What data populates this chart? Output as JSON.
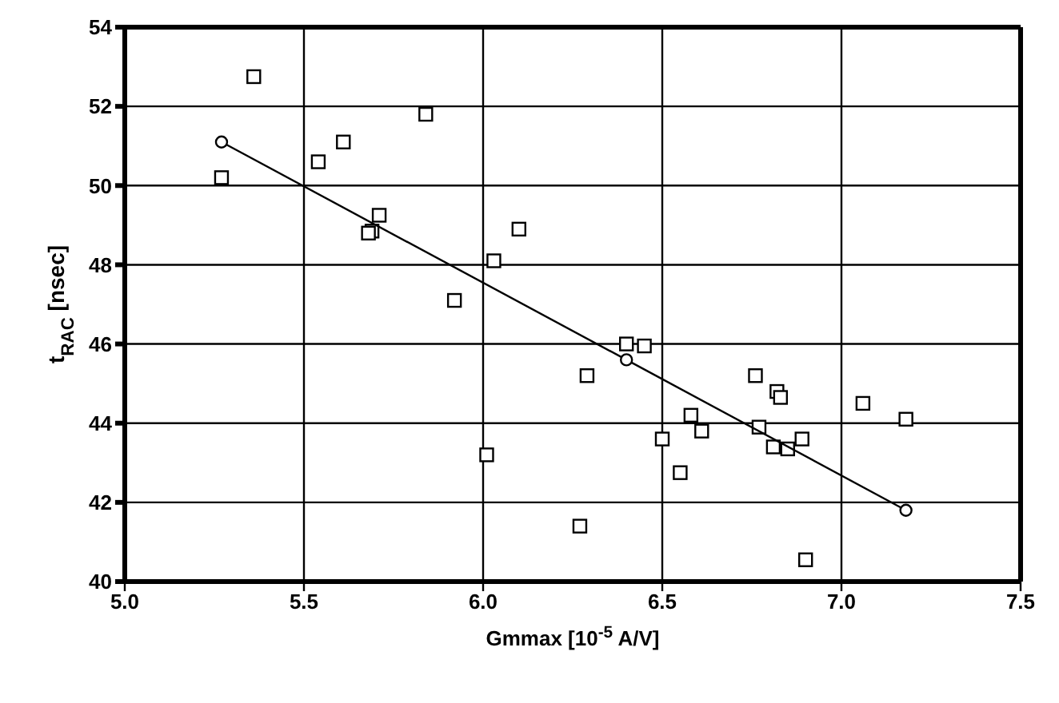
{
  "chart_data": {
    "type": "scatter",
    "xlabel": "Gmmax [10$^{-5}$ A/V]",
    "ylabel": "t$_{RAC}$ [nsec]",
    "xlim": [
      5.0,
      7.5
    ],
    "xticks": [
      {
        "value": 5,
        "label": "5.0"
      },
      5.5,
      {
        "value": 6,
        "label": "6.0"
      },
      6.5,
      {
        "value": 7,
        "label": "7.0"
      },
      7.5
    ],
    "ylim": [
      40,
      54
    ],
    "yticks": [
      40,
      42,
      44,
      46,
      48,
      50,
      52,
      54
    ],
    "grid": true,
    "legend": false,
    "series": [
      {
        "marker": "square",
        "color": "#000000",
        "x": [
          5.36,
          5.27,
          5.54,
          5.61,
          5.84,
          5.71,
          5.69,
          5.68,
          5.92,
          6.03,
          6.1,
          6.01,
          6.27,
          6.29,
          6.4,
          6.45,
          6.5,
          6.55,
          6.58,
          6.61,
          6.76,
          6.77,
          6.81,
          6.82,
          6.83,
          6.85,
          6.89,
          6.9,
          7.06,
          7.18
        ],
        "values": [
          52.75,
          50.2,
          50.6,
          51.1,
          51.8,
          49.25,
          48.85,
          48.8,
          47.1,
          48.1,
          48.9,
          43.2,
          41.4,
          45.2,
          46.0,
          45.95,
          43.6,
          42.75,
          44.2,
          43.8,
          45.2,
          43.9,
          43.4,
          44.8,
          44.65,
          43.35,
          43.6,
          40.55,
          44.5,
          44.1
        ]
      },
      {
        "type": "line",
        "marker": "circle",
        "line_style": "solid",
        "color": "#000000",
        "x": [
          5.27,
          6.4,
          7.18
        ],
        "values": [
          51.1,
          45.6,
          41.8
        ]
      }
    ]
  }
}
